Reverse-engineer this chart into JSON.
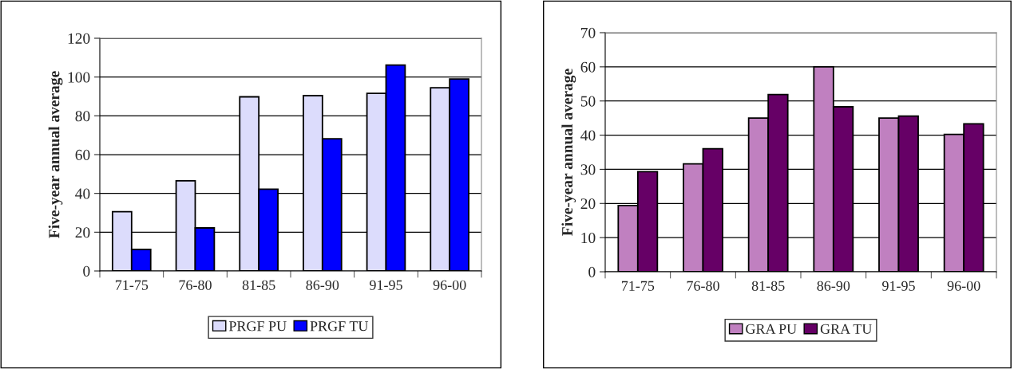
{
  "chart_data": [
    {
      "type": "bar",
      "ylabel": "Five-year annual average",
      "categories": [
        "71-75",
        "76-80",
        "81-85",
        "86-90",
        "91-95",
        "96-00"
      ],
      "series": [
        {
          "name": "PRGF PU",
          "color": "#dcdcfc",
          "values": [
            30.6,
            46.5,
            89.8,
            90.4,
            91.6,
            94.5
          ]
        },
        {
          "name": "PRGF TU",
          "color": "#0000ff",
          "values": [
            11.1,
            22.2,
            42.2,
            68.2,
            106.2,
            99
          ]
        }
      ],
      "ylim": [
        0,
        120
      ],
      "yticks": [
        0,
        20,
        40,
        60,
        80,
        100,
        120
      ],
      "grid": "y",
      "legend": "bottom"
    },
    {
      "type": "bar",
      "ylabel": "Five-year annual average",
      "categories": [
        "71-75",
        "76-80",
        "81-85",
        "86-90",
        "91-95",
        "96-00"
      ],
      "series": [
        {
          "name": "GRA PU",
          "color": "#c080c0",
          "values": [
            19.4,
            31.6,
            45,
            60,
            45,
            40.2
          ]
        },
        {
          "name": "GRA TU",
          "color": "#660066",
          "values": [
            29.3,
            36,
            51.9,
            48.3,
            45.6,
            43.3
          ]
        }
      ],
      "ylim": [
        0,
        70
      ],
      "yticks": [
        0,
        10,
        20,
        30,
        40,
        50,
        60,
        70
      ],
      "grid": "y",
      "legend": "bottom"
    }
  ]
}
